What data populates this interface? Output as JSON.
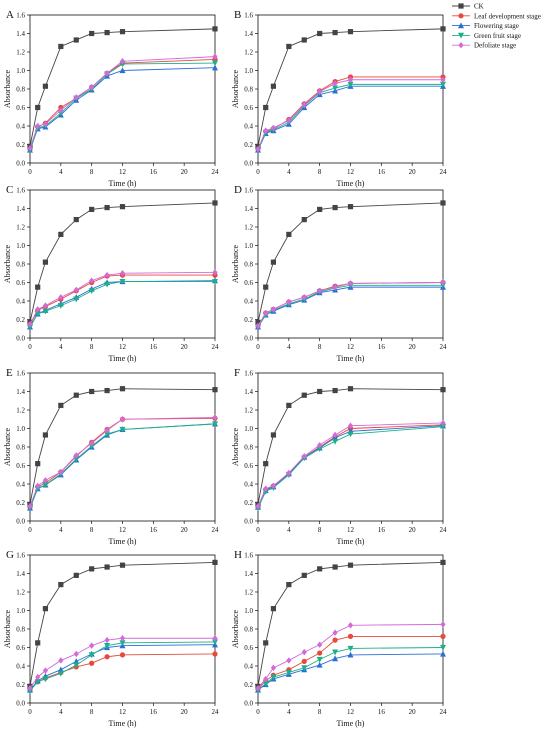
{
  "legend": {
    "placement": "top-right",
    "entries": [
      {
        "label": "CK",
        "color": "#444444",
        "marker": "square"
      },
      {
        "label": "Leaf development stage",
        "color": "#e8483e",
        "marker": "circle"
      },
      {
        "label": "Flowering stage",
        "color": "#2b6fd6",
        "marker": "triangle-up"
      },
      {
        "label": "Green fruit stage",
        "color": "#1bb08a",
        "marker": "triangle-down"
      },
      {
        "label": "Defoliate stage",
        "color": "#d36ad9",
        "marker": "diamond"
      }
    ]
  },
  "chart_data": [
    {
      "panel": "A",
      "type": "line",
      "xlabel": "Time (h)",
      "ylabel": "Absorbance",
      "xlim": [
        0,
        24
      ],
      "ylim": [
        0,
        1.6
      ],
      "xticks": [
        0,
        4,
        8,
        12,
        16,
        20,
        24
      ],
      "yticks": [
        0,
        0.2,
        0.4,
        0.6,
        0.8,
        1.0,
        1.2,
        1.4,
        1.6
      ],
      "x": [
        0,
        1,
        2,
        4,
        6,
        8,
        10,
        12,
        24
      ],
      "series": [
        {
          "name": "CK",
          "values": [
            0.18,
            0.6,
            0.83,
            1.26,
            1.33,
            1.4,
            1.41,
            1.42,
            1.45
          ]
        },
        {
          "name": "Leaf development stage",
          "values": [
            0.15,
            0.39,
            0.43,
            0.6,
            0.7,
            0.82,
            0.97,
            1.08,
            1.12
          ]
        },
        {
          "name": "Flowering stage",
          "values": [
            0.14,
            0.37,
            0.39,
            0.52,
            0.68,
            0.79,
            0.94,
            1.0,
            1.03
          ]
        },
        {
          "name": "Green fruit stage",
          "values": [
            0.14,
            0.38,
            0.4,
            0.54,
            0.7,
            0.8,
            0.96,
            1.07,
            1.08
          ]
        },
        {
          "name": "Defoliate stage",
          "values": [
            0.16,
            0.4,
            0.42,
            0.57,
            0.71,
            0.82,
            0.97,
            1.1,
            1.15
          ]
        }
      ]
    },
    {
      "panel": "B",
      "type": "line",
      "xlabel": "Time (h)",
      "ylabel": "Absorbance",
      "xlim": [
        0,
        24
      ],
      "ylim": [
        0,
        1.6
      ],
      "xticks": [
        0,
        4,
        8,
        12,
        16,
        20,
        24
      ],
      "yticks": [
        0,
        0.2,
        0.4,
        0.6,
        0.8,
        1.0,
        1.2,
        1.4,
        1.6
      ],
      "x": [
        0,
        1,
        2,
        4,
        6,
        8,
        10,
        12,
        24
      ],
      "series": [
        {
          "name": "CK",
          "values": [
            0.18,
            0.6,
            0.83,
            1.26,
            1.33,
            1.4,
            1.41,
            1.42,
            1.45
          ]
        },
        {
          "name": "Leaf development stage",
          "values": [
            0.15,
            0.34,
            0.37,
            0.47,
            0.64,
            0.78,
            0.88,
            0.93,
            0.93
          ]
        },
        {
          "name": "Flowering stage",
          "values": [
            0.14,
            0.32,
            0.35,
            0.42,
            0.6,
            0.74,
            0.78,
            0.83,
            0.83
          ]
        },
        {
          "name": "Green fruit stage",
          "values": [
            0.14,
            0.33,
            0.36,
            0.44,
            0.62,
            0.76,
            0.81,
            0.85,
            0.85
          ]
        },
        {
          "name": "Defoliate stage",
          "values": [
            0.15,
            0.35,
            0.38,
            0.46,
            0.63,
            0.77,
            0.86,
            0.9,
            0.9
          ]
        }
      ]
    },
    {
      "panel": "C",
      "type": "line",
      "xlabel": "Time (h)",
      "ylabel": "Absorbance",
      "xlim": [
        0,
        24
      ],
      "ylim": [
        0,
        1.6
      ],
      "xticks": [
        0,
        4,
        8,
        12,
        16,
        20,
        24
      ],
      "yticks": [
        0,
        0.2,
        0.4,
        0.6,
        0.8,
        1.0,
        1.2,
        1.4,
        1.6
      ],
      "x": [
        0,
        1,
        2,
        4,
        6,
        8,
        10,
        12,
        24
      ],
      "series": [
        {
          "name": "CK",
          "values": [
            0.17,
            0.55,
            0.82,
            1.12,
            1.28,
            1.39,
            1.41,
            1.42,
            1.46
          ]
        },
        {
          "name": "Leaf development stage",
          "values": [
            0.14,
            0.3,
            0.34,
            0.42,
            0.51,
            0.6,
            0.67,
            0.68,
            0.68
          ]
        },
        {
          "name": "Flowering stage",
          "values": [
            0.12,
            0.26,
            0.3,
            0.37,
            0.44,
            0.53,
            0.6,
            0.61,
            0.62
          ]
        },
        {
          "name": "Green fruit stage",
          "values": [
            0.12,
            0.26,
            0.29,
            0.35,
            0.42,
            0.51,
            0.58,
            0.61,
            0.61
          ]
        },
        {
          "name": "Defoliate stage",
          "values": [
            0.15,
            0.31,
            0.35,
            0.44,
            0.52,
            0.62,
            0.68,
            0.7,
            0.71
          ]
        }
      ]
    },
    {
      "panel": "D",
      "type": "line",
      "xlabel": "Time (h)",
      "ylabel": "Absorbance",
      "xlim": [
        0,
        24
      ],
      "ylim": [
        0,
        1.6
      ],
      "xticks": [
        0,
        4,
        8,
        12,
        16,
        20,
        24
      ],
      "yticks": [
        0,
        0.2,
        0.4,
        0.6,
        0.8,
        1.0,
        1.2,
        1.4,
        1.6
      ],
      "x": [
        0,
        1,
        2,
        4,
        6,
        8,
        10,
        12,
        24
      ],
      "series": [
        {
          "name": "CK",
          "values": [
            0.17,
            0.55,
            0.82,
            1.12,
            1.28,
            1.39,
            1.41,
            1.42,
            1.46
          ]
        },
        {
          "name": "Leaf development stage",
          "values": [
            0.13,
            0.27,
            0.31,
            0.39,
            0.44,
            0.51,
            0.56,
            0.59,
            0.6
          ]
        },
        {
          "name": "Flowering stage",
          "values": [
            0.12,
            0.25,
            0.29,
            0.36,
            0.41,
            0.49,
            0.52,
            0.55,
            0.55
          ]
        },
        {
          "name": "Green fruit stage",
          "values": [
            0.12,
            0.25,
            0.3,
            0.37,
            0.42,
            0.5,
            0.54,
            0.57,
            0.57
          ]
        },
        {
          "name": "Defoliate stage",
          "values": [
            0.13,
            0.27,
            0.31,
            0.39,
            0.44,
            0.51,
            0.55,
            0.59,
            0.6
          ]
        }
      ]
    },
    {
      "panel": "E",
      "type": "line",
      "xlabel": "Time (h)",
      "ylabel": "Absorbance",
      "xlim": [
        0,
        24
      ],
      "ylim": [
        0,
        1.6
      ],
      "xticks": [
        0,
        4,
        8,
        12,
        16,
        20,
        24
      ],
      "yticks": [
        0,
        0.2,
        0.4,
        0.6,
        0.8,
        1.0,
        1.2,
        1.4,
        1.6
      ],
      "x": [
        0,
        1,
        2,
        4,
        6,
        8,
        10,
        12,
        24
      ],
      "series": [
        {
          "name": "CK",
          "values": [
            0.18,
            0.62,
            0.93,
            1.25,
            1.36,
            1.4,
            1.41,
            1.43,
            1.42
          ]
        },
        {
          "name": "Leaf development stage",
          "values": [
            0.15,
            0.37,
            0.41,
            0.53,
            0.7,
            0.85,
            0.99,
            1.1,
            1.11
          ]
        },
        {
          "name": "Flowering stage",
          "values": [
            0.14,
            0.35,
            0.39,
            0.5,
            0.66,
            0.8,
            0.93,
            0.99,
            1.05
          ]
        },
        {
          "name": "Green fruit stage",
          "values": [
            0.14,
            0.35,
            0.39,
            0.51,
            0.67,
            0.81,
            0.94,
            0.99,
            1.05
          ]
        },
        {
          "name": "Defoliate stage",
          "values": [
            0.16,
            0.38,
            0.44,
            0.53,
            0.71,
            0.84,
            0.98,
            1.1,
            1.12
          ]
        }
      ]
    },
    {
      "panel": "F",
      "type": "line",
      "xlabel": "Time (h)",
      "ylabel": "Absorbance",
      "xlim": [
        0,
        24
      ],
      "ylim": [
        0,
        1.6
      ],
      "xticks": [
        0,
        4,
        8,
        12,
        16,
        20,
        24
      ],
      "yticks": [
        0,
        0.2,
        0.4,
        0.6,
        0.8,
        1.0,
        1.2,
        1.4,
        1.6
      ],
      "x": [
        0,
        1,
        2,
        4,
        6,
        8,
        10,
        12,
        24
      ],
      "series": [
        {
          "name": "CK",
          "values": [
            0.18,
            0.62,
            0.93,
            1.25,
            1.36,
            1.4,
            1.41,
            1.43,
            1.42
          ]
        },
        {
          "name": "Leaf development stage",
          "values": [
            0.15,
            0.34,
            0.38,
            0.51,
            0.69,
            0.8,
            0.91,
            1.0,
            1.04
          ]
        },
        {
          "name": "Flowering stage",
          "values": [
            0.15,
            0.33,
            0.37,
            0.51,
            0.69,
            0.79,
            0.9,
            0.97,
            1.03
          ]
        },
        {
          "name": "Green fruit stage",
          "values": [
            0.14,
            0.32,
            0.36,
            0.5,
            0.68,
            0.78,
            0.86,
            0.94,
            1.02
          ]
        },
        {
          "name": "Defoliate stage",
          "values": [
            0.16,
            0.35,
            0.38,
            0.52,
            0.7,
            0.82,
            0.93,
            1.03,
            1.06
          ]
        }
      ]
    },
    {
      "panel": "G",
      "type": "line",
      "xlabel": "Time (h)",
      "ylabel": "Absorbance",
      "xlim": [
        0,
        24
      ],
      "ylim": [
        0,
        1.6
      ],
      "xticks": [
        0,
        4,
        8,
        12,
        16,
        20,
        24
      ],
      "yticks": [
        0,
        0.2,
        0.4,
        0.6,
        0.8,
        1.0,
        1.2,
        1.4,
        1.6
      ],
      "x": [
        0,
        1,
        2,
        4,
        6,
        8,
        10,
        12,
        24
      ],
      "series": [
        {
          "name": "CK",
          "values": [
            0.18,
            0.65,
            1.02,
            1.28,
            1.38,
            1.45,
            1.47,
            1.49,
            1.52
          ]
        },
        {
          "name": "Leaf development stage",
          "values": [
            0.14,
            0.23,
            0.27,
            0.33,
            0.39,
            0.43,
            0.5,
            0.52,
            0.53
          ]
        },
        {
          "name": "Flowering stage",
          "values": [
            0.14,
            0.24,
            0.29,
            0.36,
            0.45,
            0.53,
            0.6,
            0.62,
            0.63
          ]
        },
        {
          "name": "Green fruit stage",
          "values": [
            0.13,
            0.23,
            0.26,
            0.32,
            0.41,
            0.52,
            0.62,
            0.65,
            0.66
          ]
        },
        {
          "name": "Defoliate stage",
          "values": [
            0.16,
            0.28,
            0.35,
            0.46,
            0.53,
            0.62,
            0.68,
            0.7,
            0.7
          ]
        }
      ]
    },
    {
      "panel": "H",
      "type": "line",
      "xlabel": "Time (h)",
      "ylabel": "Absorbance",
      "xlim": [
        0,
        24
      ],
      "ylim": [
        0,
        1.6
      ],
      "xticks": [
        0,
        4,
        8,
        12,
        16,
        20,
        24
      ],
      "yticks": [
        0,
        0.2,
        0.4,
        0.6,
        0.8,
        1.0,
        1.2,
        1.4,
        1.6
      ],
      "x": [
        0,
        1,
        2,
        4,
        6,
        8,
        10,
        12,
        24
      ],
      "series": [
        {
          "name": "CK",
          "values": [
            0.18,
            0.65,
            1.02,
            1.28,
            1.38,
            1.45,
            1.47,
            1.49,
            1.52
          ]
        },
        {
          "name": "Leaf development stage",
          "values": [
            0.15,
            0.24,
            0.3,
            0.36,
            0.45,
            0.54,
            0.68,
            0.72,
            0.72
          ]
        },
        {
          "name": "Flowering stage",
          "values": [
            0.14,
            0.2,
            0.26,
            0.31,
            0.36,
            0.41,
            0.48,
            0.52,
            0.53
          ]
        },
        {
          "name": "Green fruit stage",
          "values": [
            0.14,
            0.21,
            0.28,
            0.33,
            0.38,
            0.47,
            0.55,
            0.59,
            0.6
          ]
        },
        {
          "name": "Defoliate stage",
          "values": [
            0.16,
            0.26,
            0.38,
            0.46,
            0.55,
            0.63,
            0.76,
            0.84,
            0.85
          ]
        }
      ]
    }
  ]
}
